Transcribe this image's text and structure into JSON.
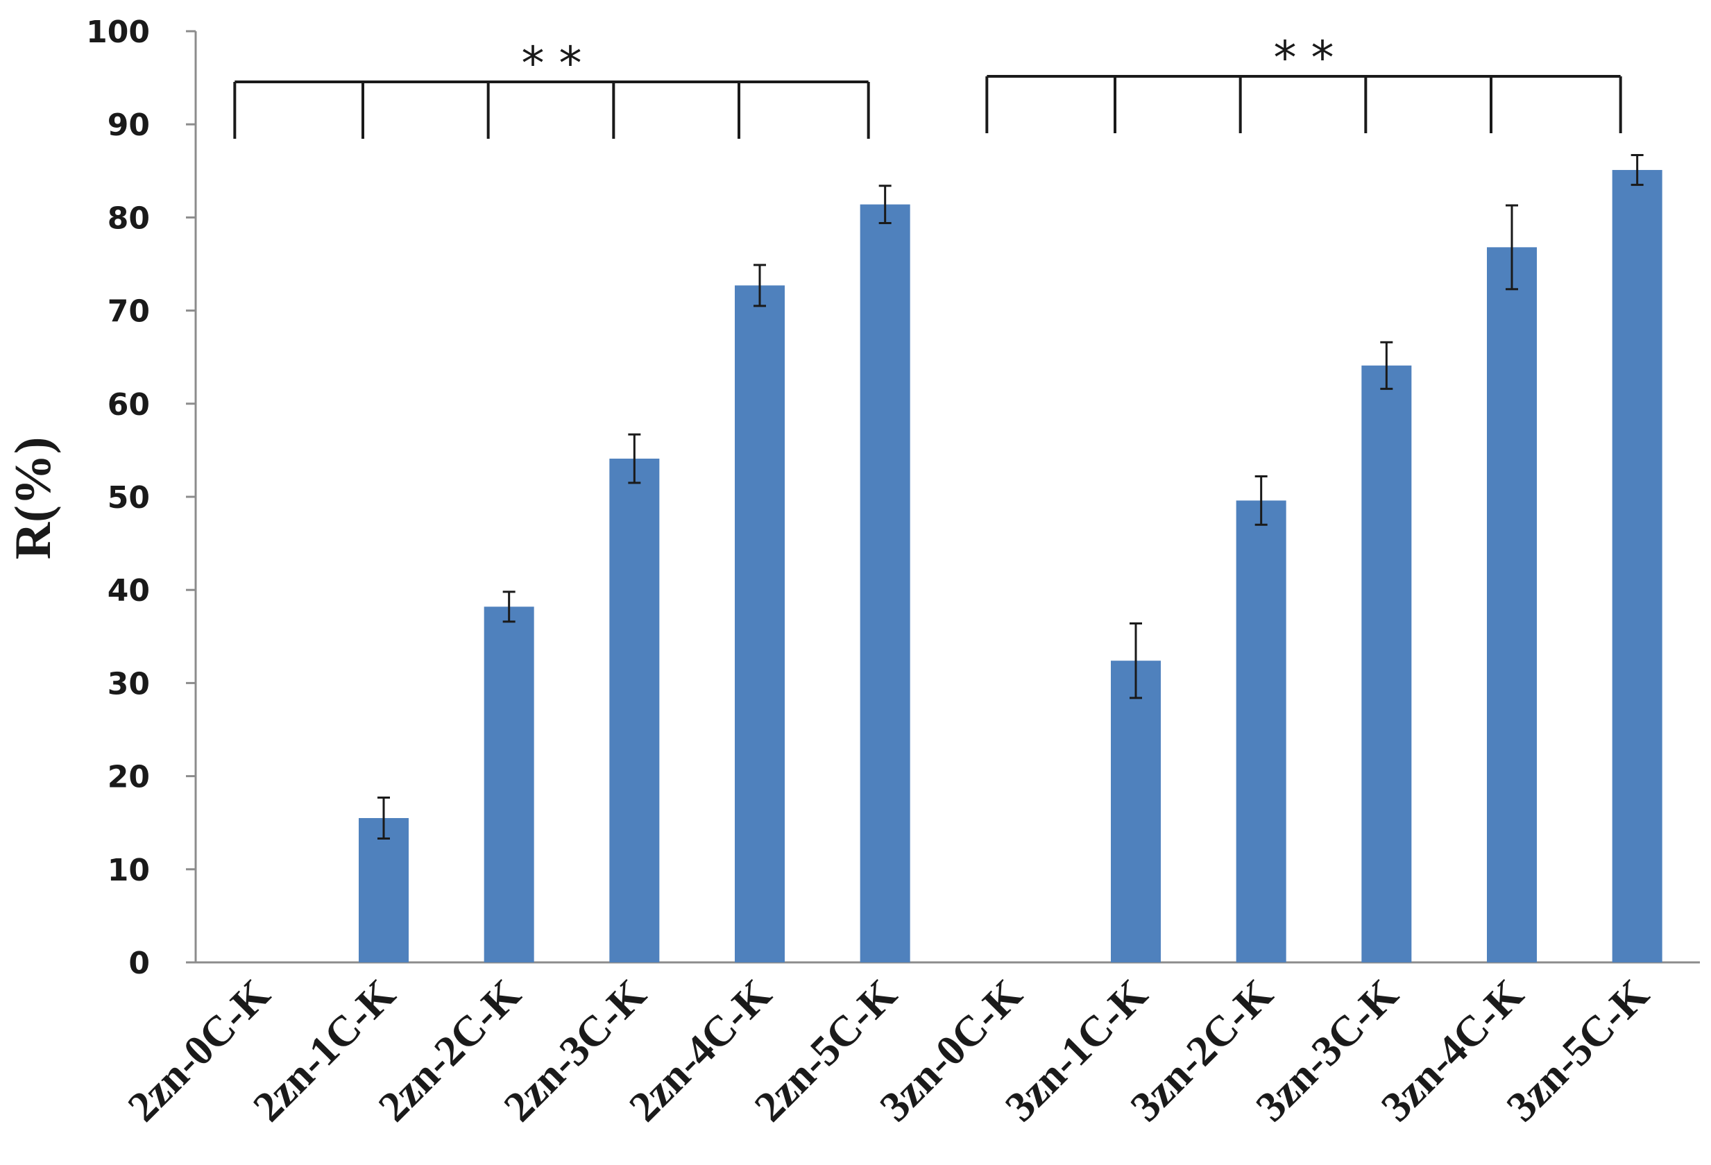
{
  "chart_data": {
    "type": "bar",
    "ylabel": "R(%)",
    "ylim": [
      0,
      100
    ],
    "yticks": [
      0,
      10,
      20,
      30,
      40,
      50,
      60,
      70,
      80,
      90,
      100
    ],
    "categories": [
      "2zn-0C-K",
      "2zn-1C-K",
      "2zn-2C-K",
      "2zn-3C-K",
      "2zn-4C-K",
      "2zn-5C-K",
      "3zn-0C-K",
      "3zn-1C-K",
      "3zn-2C-K",
      "3zn-3C-K",
      "3zn-4C-K",
      "3zn-5C-K"
    ],
    "values": [
      0,
      15.5,
      38.2,
      54.1,
      72.7,
      81.4,
      0,
      32.4,
      49.6,
      64.1,
      76.8,
      85.1
    ],
    "errors": [
      0,
      2.2,
      1.6,
      2.6,
      2.2,
      2.0,
      0,
      4.0,
      2.6,
      2.5,
      4.5,
      1.6
    ],
    "bar_color": "#4f81bd",
    "significance": [
      {
        "label": "* *",
        "from": 0,
        "to": 5
      },
      {
        "label": "* *",
        "from": 6,
        "to": 11
      }
    ],
    "grid": false,
    "legend": "none"
  }
}
